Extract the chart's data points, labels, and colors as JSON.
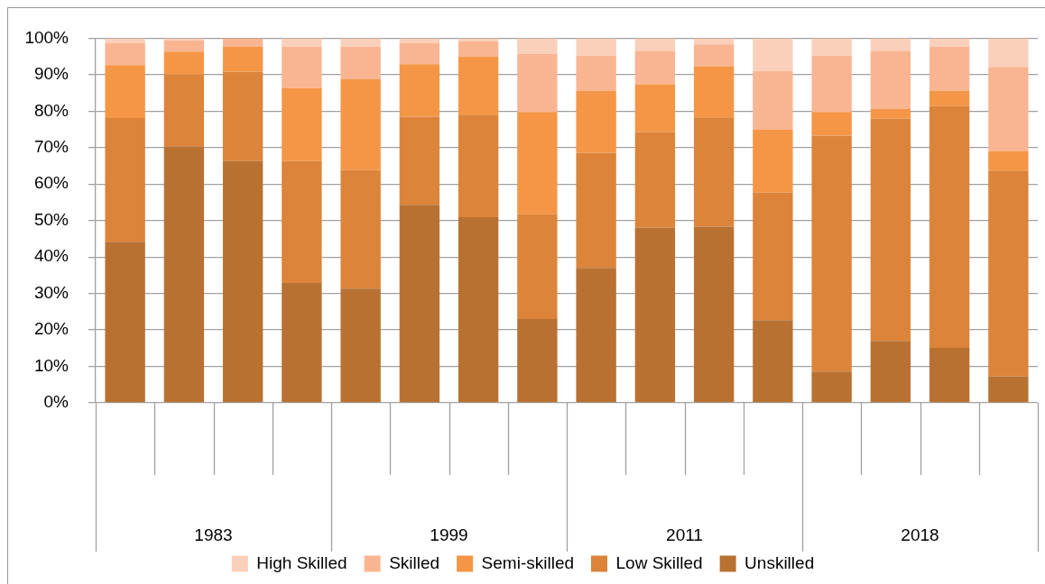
{
  "chart_data": {
    "type": "bar",
    "stacked": true,
    "categories": [
      null,
      null,
      null,
      null,
      null,
      null,
      null,
      null,
      null,
      null,
      null,
      null,
      null,
      null,
      null,
      null
    ],
    "series": [
      {
        "name": "Unskilled",
        "color": "#b97132",
        "values": [
          44.2,
          70.4,
          66.3,
          32.9,
          31.3,
          54.3,
          50.9,
          23.0,
          37.0,
          48.0,
          48.3,
          22.7,
          8.6,
          17.0,
          15.1,
          7.3
        ]
      },
      {
        "name": "Low Skilled",
        "color": "#dc843a",
        "values": [
          33.9,
          19.6,
          24.5,
          33.4,
          32.6,
          24.2,
          28.1,
          28.7,
          31.6,
          26.3,
          30.0,
          35.0,
          64.7,
          61.0,
          66.3,
          56.4
        ]
      },
      {
        "name": "Semi-skilled",
        "color": "#f59646",
        "values": [
          14.5,
          6.3,
          6.8,
          20.0,
          24.8,
          14.4,
          16.0,
          28.1,
          17.0,
          13.1,
          14.0,
          17.2,
          6.5,
          2.6,
          4.2,
          5.4
        ]
      },
      {
        "name": "Skilled",
        "color": "#f9b592",
        "values": [
          6.0,
          3.1,
          2.4,
          11.3,
          8.9,
          5.7,
          4.1,
          15.9,
          9.6,
          9.1,
          6.0,
          16.1,
          15.4,
          15.9,
          12.0,
          23.0
        ]
      },
      {
        "name": "High Skilled",
        "color": "#fad0bb",
        "values": [
          1.4,
          0.6,
          null,
          2.4,
          2.4,
          1.4,
          0.9,
          4.3,
          4.8,
          3.5,
          1.7,
          9.0,
          4.8,
          3.5,
          2.4,
          7.9
        ]
      }
    ],
    "ylim": [
      0,
      100
    ],
    "yticks": [
      {
        "value": 0,
        "label": "0%"
      },
      {
        "value": 10,
        "label": "10%"
      },
      {
        "value": 20,
        "label": "20%"
      },
      {
        "value": 30,
        "label": "30%"
      },
      {
        "value": 40,
        "label": "40%"
      },
      {
        "value": 50,
        "label": "50%"
      },
      {
        "value": 60,
        "label": "60%"
      },
      {
        "value": 70,
        "label": "70%"
      },
      {
        "value": 80,
        "label": "80%"
      },
      {
        "value": 90,
        "label": "90%"
      },
      {
        "value": 100,
        "label": "100%"
      }
    ],
    "grid": "y",
    "legend": "bottom",
    "annotations": [
      "1983",
      "1999",
      "2011",
      "2018"
    ]
  }
}
